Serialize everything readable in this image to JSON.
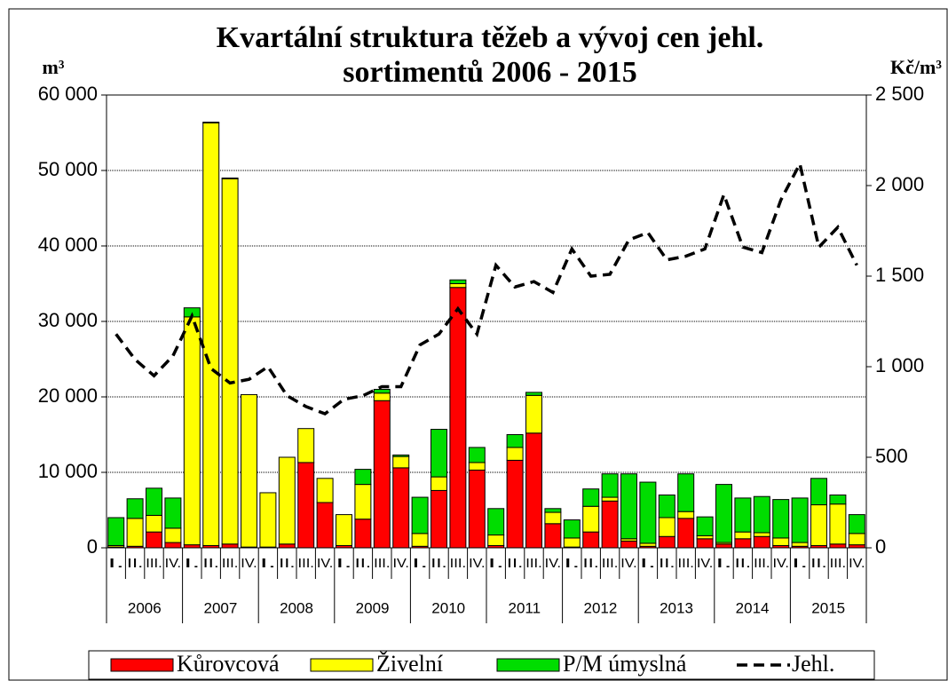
{
  "chart_data": {
    "type": "stacked_bar_line",
    "title": "Kvartální struktura těžeb a vývoj cen jehl.",
    "subtitle": "sortimentů 2006 - 2015",
    "y_label": "m³",
    "y2_label": "Kč/m³",
    "categories": [
      "I.",
      "II.",
      "III.",
      "IV.",
      "I.",
      "II.",
      "III.",
      "IV.",
      "I.",
      "II.",
      "III.",
      "IV.",
      "I.",
      "II.",
      "III.",
      "IV.",
      "I.",
      "II.",
      "III.",
      "IV.",
      "I.",
      "II.",
      "III.",
      "IV.",
      "I.",
      "II.",
      "III.",
      "IV.",
      "I.",
      "II.",
      "III.",
      "IV.",
      "I.",
      "II.",
      "III.",
      "IV.",
      "I.",
      "II.",
      "III.",
      "IV."
    ],
    "groups": [
      "2006",
      "2007",
      "2008",
      "2009",
      "2010",
      "2011",
      "2012",
      "2013",
      "2014",
      "2015"
    ],
    "series": [
      {
        "name": "Kůrovcová",
        "color": "#ff0000",
        "values": [
          100,
          200,
          2100,
          700,
          400,
          300,
          500,
          100,
          100,
          500,
          11300,
          6000,
          300,
          3800,
          19500,
          10600,
          200,
          7600,
          34500,
          10300,
          300,
          11600,
          15200,
          3200,
          100,
          2100,
          6200,
          900,
          200,
          1500,
          3900,
          1200,
          500,
          1200,
          1500,
          300,
          200,
          300,
          500,
          400
        ]
      },
      {
        "name": "Živelní",
        "color": "#ffff00",
        "values": [
          200,
          3700,
          2200,
          1900,
          30200,
          56000,
          48400,
          20200,
          7200,
          11500,
          4500,
          3200,
          4100,
          4600,
          1000,
          1500,
          1700,
          1800,
          500,
          1000,
          1400,
          1700,
          5000,
          1500,
          1200,
          3400,
          500,
          300,
          400,
          2500,
          900,
          400,
          200,
          900,
          500,
          1000,
          500,
          5400,
          5300,
          1500
        ]
      },
      {
        "name": "P/M úmyslná",
        "color": "#00dd00",
        "values": [
          3700,
          2600,
          3600,
          4000,
          1200,
          100,
          100,
          0,
          0,
          0,
          0,
          0,
          0,
          2000,
          500,
          200,
          4800,
          6300,
          500,
          2000,
          3500,
          1700,
          400,
          500,
          2400,
          2300,
          3100,
          8600,
          8100,
          3000,
          5000,
          2500,
          7700,
          4500,
          4800,
          5100,
          5900,
          3500,
          1200,
          2500
        ]
      },
      {
        "name": "Jehl.",
        "color": "#000000",
        "axis": "y2",
        "values": [
          1180,
          1040,
          950,
          1060,
          1280,
          990,
          910,
          930,
          1000,
          840,
          780,
          740,
          820,
          840,
          890,
          890,
          1120,
          1180,
          1320,
          1180,
          1560,
          1440,
          1470,
          1410,
          1650,
          1500,
          1510,
          1700,
          1740,
          1590,
          1610,
          1650,
          1950,
          1660,
          1630,
          1920,
          2120,
          1660,
          1770,
          1560
        ]
      }
    ],
    "ylim": [
      0,
      60000
    ],
    "yticks": [
      0,
      {
        "value": 10000,
        "label": "10 000"
      },
      {
        "value": 20000,
        "label": "20 000"
      },
      {
        "value": 30000,
        "label": "30 000"
      },
      {
        "value": 40000,
        "label": "40 000"
      },
      {
        "value": 50000,
        "label": "50 000"
      },
      {
        "value": 60000,
        "label": "60 000"
      }
    ],
    "y2lim": [
      0,
      2500
    ],
    "y2ticks": [
      0,
      500,
      {
        "value": 1000,
        "label": "1 000"
      },
      {
        "value": 1500,
        "label": "1 500"
      },
      {
        "value": 2000,
        "label": "2 000"
      },
      {
        "value": 2500,
        "label": "2 500"
      }
    ],
    "grid": true,
    "legend": "bottom"
  }
}
